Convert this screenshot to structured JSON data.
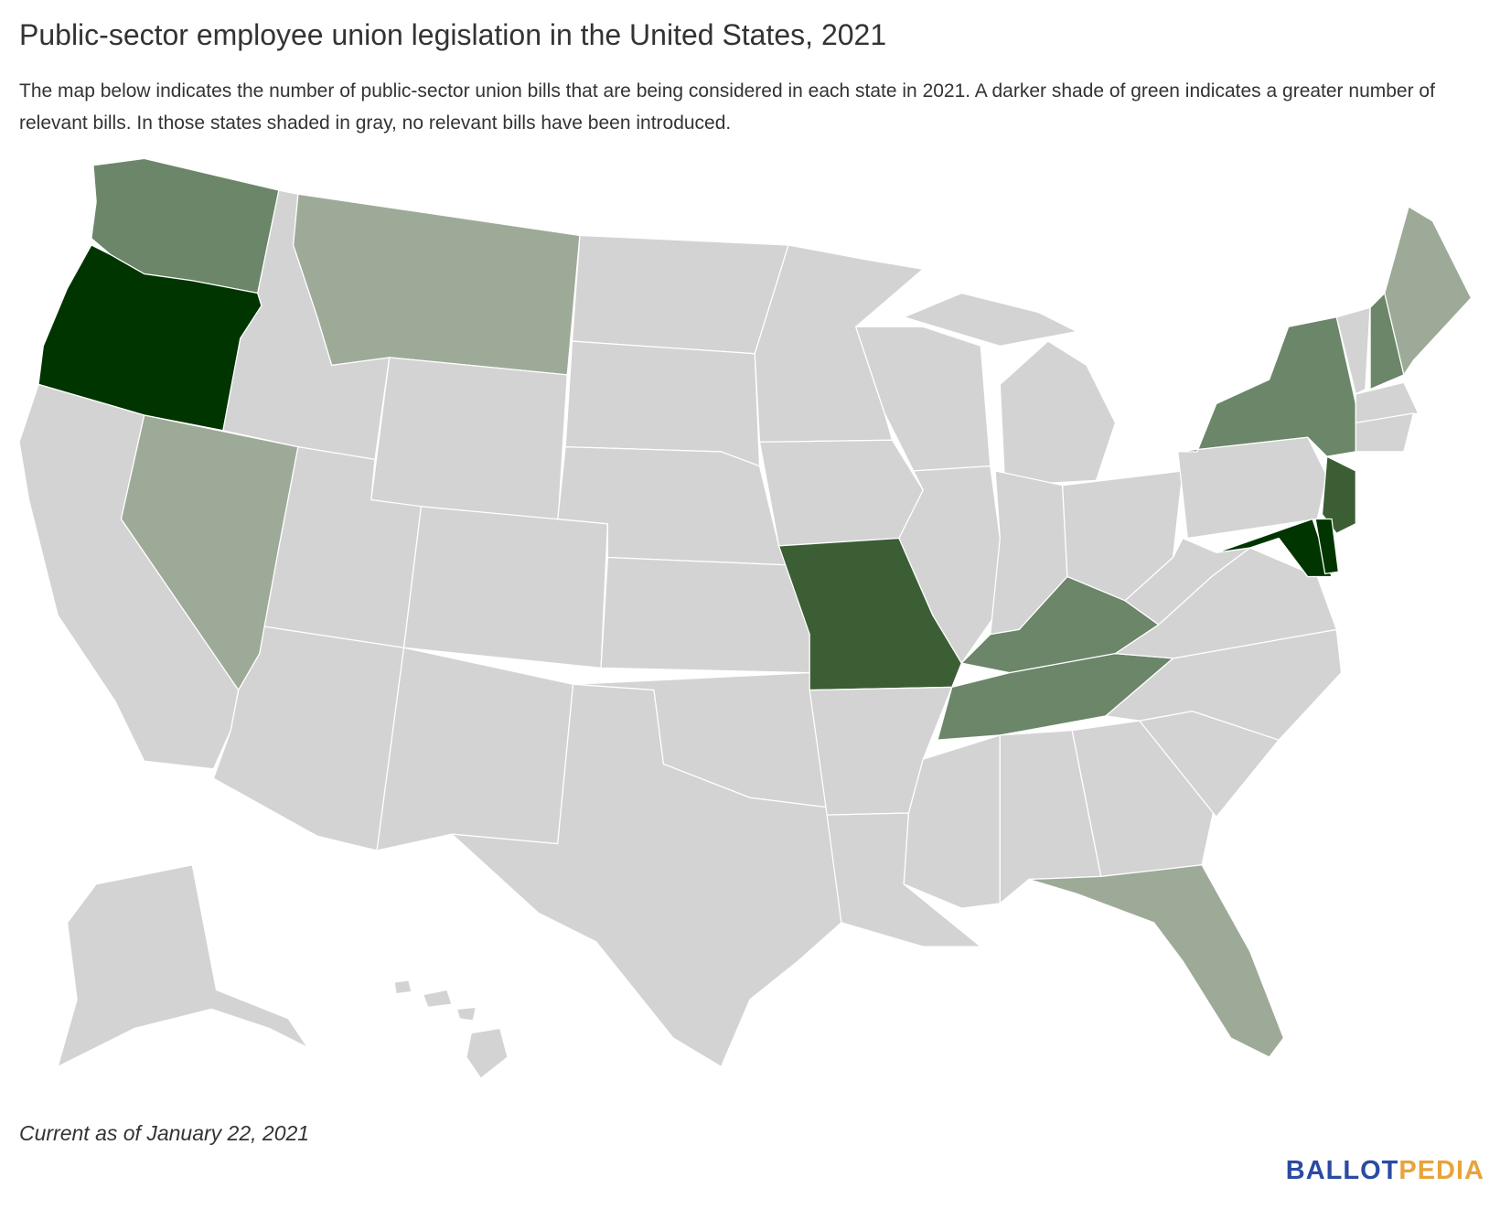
{
  "header": {
    "title": "Public-sector employee union legislation in the United States, 2021",
    "subtitle": "The map below indicates the number of public-sector union bills that are being considered in each state in 2021. A darker shade of green indicates a greater number of relevant bills. In those states shaded in gray, no relevant bills have been introduced."
  },
  "footnote": "Current as of January 22, 2021",
  "logo": {
    "first": "BALLOT",
    "second": "PEDIA"
  }
}
